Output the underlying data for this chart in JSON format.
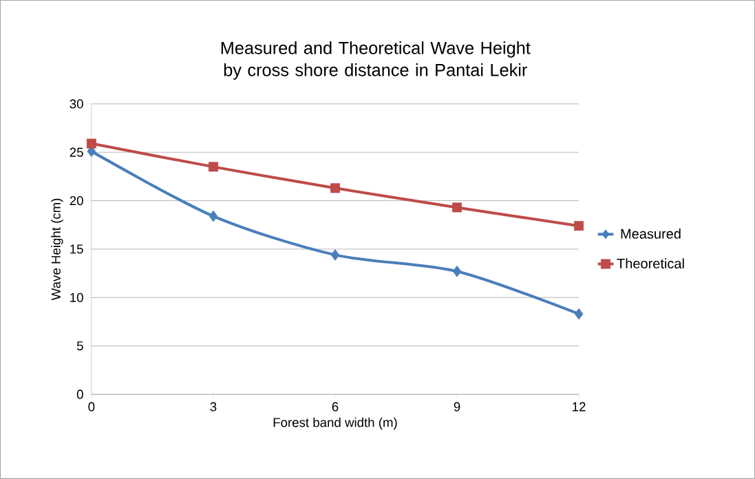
{
  "chart_data": {
    "type": "line",
    "title": "Measured and Theoretical Wave Height by cross shore distance in Pantai Lekir",
    "xlabel": "Forest band width (m)",
    "ylabel": "Wave Height (cm)",
    "x": [
      0,
      3,
      6,
      9,
      12
    ],
    "series": [
      {
        "name": "Measured",
        "color": "#4a7ebb",
        "marker": "diamond",
        "values": [
          25.1,
          18.4,
          14.4,
          12.7,
          8.3
        ]
      },
      {
        "name": "Theoretical",
        "color": "#be4b48",
        "marker": "square",
        "values": [
          25.9,
          23.5,
          21.3,
          19.3,
          17.4
        ]
      }
    ],
    "xlim": [
      0,
      12
    ],
    "xticks": [
      0,
      3,
      6,
      9,
      12
    ],
    "ylim": [
      0,
      30
    ],
    "yticks": [
      0,
      5,
      10,
      15,
      20,
      25,
      30
    ],
    "grid": "y",
    "legend": "right"
  }
}
